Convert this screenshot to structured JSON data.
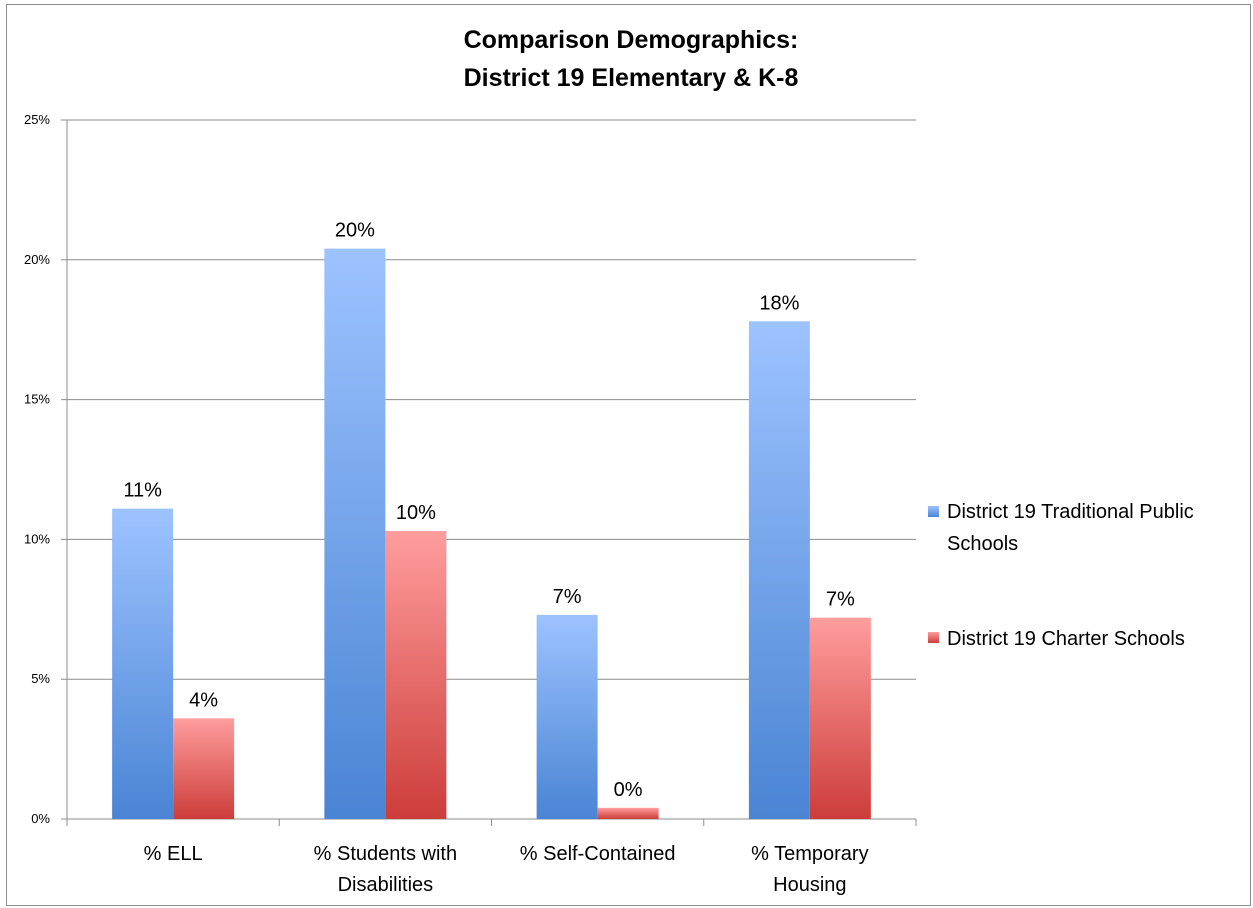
{
  "chart_data": {
    "type": "bar",
    "title": [
      "Comparison Demographics:",
      "District 19 Elementary & K-8"
    ],
    "categories": [
      [
        "% ELL"
      ],
      [
        "% Students with",
        "Disabilities"
      ],
      [
        "% Self-Contained"
      ],
      [
        "% Temporary",
        "Housing"
      ]
    ],
    "series": [
      {
        "name": [
          "District 19 Traditional Public",
          "Schools"
        ],
        "values": [
          11.1,
          20.4,
          7.3,
          17.8
        ],
        "labels": [
          "11%",
          "20%",
          "7%",
          "18%"
        ],
        "color_top": "#9dc3ff",
        "color_bottom": "#4a84d4"
      },
      {
        "name": [
          "District 19 Charter Schools"
        ],
        "values": [
          3.6,
          10.3,
          0.4,
          7.2
        ],
        "labels": [
          "4%",
          "10%",
          "0%",
          "7%"
        ],
        "color_top": "#ff9d9d",
        "color_bottom": "#cc3d3a"
      }
    ],
    "yticks": [
      "0%",
      "5%",
      "10%",
      "15%",
      "20%",
      "25%"
    ],
    "ylim": [
      0,
      25
    ],
    "grid": true,
    "legend_position": "right"
  }
}
